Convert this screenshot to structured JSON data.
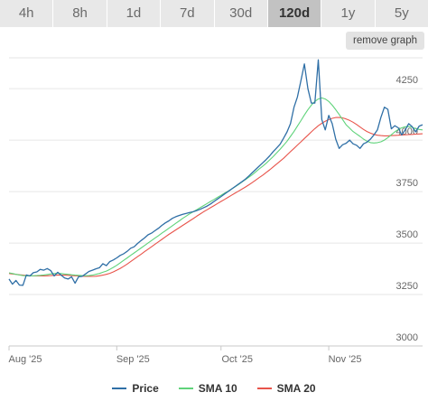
{
  "range_tabs": {
    "items": [
      {
        "label": "4h"
      },
      {
        "label": "8h"
      },
      {
        "label": "1d"
      },
      {
        "label": "7d"
      },
      {
        "label": "30d"
      },
      {
        "label": "120d"
      },
      {
        "label": "1y"
      },
      {
        "label": "5y"
      }
    ],
    "selected": "120d"
  },
  "remove_graph_label": "remove graph",
  "chart_data": {
    "type": "line",
    "x_ticks": [
      "Aug '25",
      "Sep '25",
      "Oct '25",
      "Nov '25"
    ],
    "y_ticks": [
      "3000",
      "3250",
      "3500",
      "3750",
      "4000",
      "4250"
    ],
    "ylim": [
      3000,
      4400
    ],
    "grid": true,
    "legend_position": "bottom",
    "colors": {
      "price": "#2f6fa6",
      "sma10": "#5fd37a",
      "sma20": "#e8544b"
    },
    "x_index_range": [
      0,
      119
    ],
    "series": [
      {
        "name": "Price",
        "values": [
          3325,
          3300,
          3318,
          3296,
          3295,
          3345,
          3340,
          3356,
          3360,
          3372,
          3368,
          3376,
          3366,
          3340,
          3358,
          3344,
          3330,
          3325,
          3336,
          3305,
          3336,
          3338,
          3350,
          3362,
          3368,
          3375,
          3380,
          3400,
          3390,
          3410,
          3418,
          3428,
          3440,
          3448,
          3460,
          3475,
          3482,
          3498,
          3512,
          3525,
          3540,
          3548,
          3560,
          3572,
          3586,
          3598,
          3608,
          3620,
          3628,
          3634,
          3640,
          3644,
          3648,
          3652,
          3658,
          3664,
          3672,
          3680,
          3690,
          3702,
          3714,
          3726,
          3738,
          3750,
          3762,
          3774,
          3786,
          3798,
          3810,
          3826,
          3842,
          3858,
          3874,
          3890,
          3906,
          3924,
          3944,
          3962,
          3980,
          4010,
          4040,
          4080,
          4160,
          4210,
          4290,
          4370,
          4250,
          4180,
          4180,
          4390,
          4100,
          4050,
          4120,
          4080,
          4005,
          3960,
          3978,
          3985,
          4000,
          3982,
          3975,
          3960,
          3982,
          3990,
          4005,
          4025,
          4050,
          4110,
          4160,
          4150,
          4055,
          4070,
          4060,
          4025,
          4050,
          4080,
          4065,
          4040,
          4068,
          4075
        ]
      },
      {
        "name": "SMA 10",
        "values": [
          3355,
          3352,
          3348,
          3345,
          3342,
          3340,
          3340,
          3341,
          3342,
          3343,
          3345,
          3347,
          3350,
          3352,
          3353,
          3352,
          3350,
          3348,
          3346,
          3344,
          3343,
          3342,
          3341,
          3342,
          3344,
          3348,
          3352,
          3358,
          3364,
          3372,
          3382,
          3392,
          3404,
          3416,
          3428,
          3440,
          3452,
          3464,
          3476,
          3488,
          3500,
          3512,
          3524,
          3536,
          3548,
          3560,
          3572,
          3584,
          3596,
          3608,
          3620,
          3631,
          3642,
          3652,
          3662,
          3672,
          3682,
          3692,
          3702,
          3712,
          3722,
          3732,
          3742,
          3752,
          3762,
          3773,
          3784,
          3796,
          3808,
          3820,
          3832,
          3846,
          3860,
          3874,
          3888,
          3904,
          3920,
          3938,
          3956,
          3975,
          3995,
          4018,
          4042,
          4068,
          4095,
          4122,
          4148,
          4170,
          4188,
          4200,
          4205,
          4200,
          4188,
          4170,
          4148,
          4125,
          4100,
          4075,
          4058,
          4042,
          4030,
          4018,
          4005,
          3995,
          3988,
          3986,
          3988,
          3992,
          4000,
          4012,
          4026,
          4040,
          4052,
          4060,
          4065,
          4066,
          4062,
          4056,
          4052,
          4050
        ]
      },
      {
        "name": "SMA 20",
        "values": [
          3352,
          3350,
          3348,
          3346,
          3344,
          3342,
          3341,
          3340,
          3340,
          3340,
          3340,
          3341,
          3342,
          3343,
          3344,
          3344,
          3344,
          3343,
          3342,
          3341,
          3340,
          3339,
          3338,
          3338,
          3338,
          3339,
          3341,
          3344,
          3348,
          3353,
          3360,
          3368,
          3377,
          3387,
          3398,
          3410,
          3422,
          3434,
          3446,
          3458,
          3470,
          3482,
          3494,
          3506,
          3518,
          3530,
          3542,
          3553,
          3564,
          3575,
          3586,
          3597,
          3608,
          3619,
          3630,
          3641,
          3652,
          3662,
          3672,
          3682,
          3692,
          3702,
          3712,
          3722,
          3732,
          3742,
          3752,
          3762,
          3772,
          3783,
          3794,
          3806,
          3818,
          3830,
          3843,
          3856,
          3870,
          3884,
          3898,
          3912,
          3928,
          3944,
          3960,
          3976,
          3992,
          4008,
          4024,
          4040,
          4056,
          4070,
          4082,
          4092,
          4100,
          4106,
          4110,
          4110,
          4108,
          4103,
          4096,
          4087,
          4076,
          4064,
          4052,
          4042,
          4034,
          4028,
          4024,
          4022,
          4021,
          4021,
          4022,
          4023,
          4024,
          4025,
          4026,
          4027,
          4028,
          4029,
          4030,
          4031
        ]
      }
    ]
  },
  "legend": {
    "price": "Price",
    "sma10": "SMA 10",
    "sma20": "SMA 20"
  }
}
